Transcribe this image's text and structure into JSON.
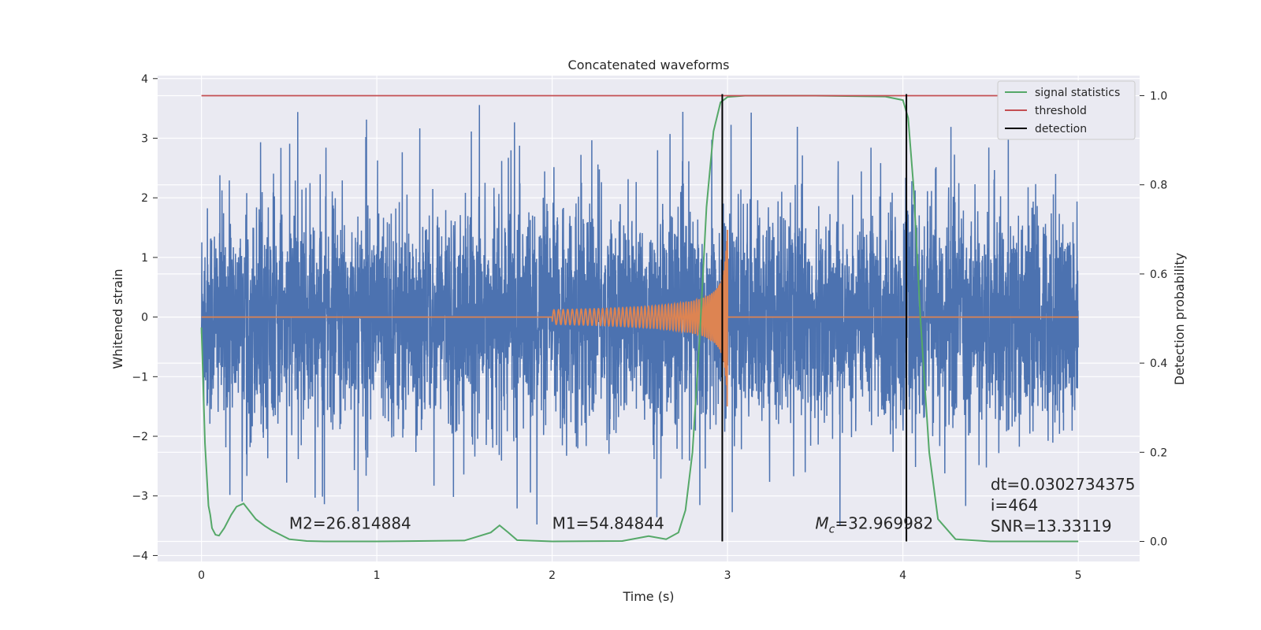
{
  "chart_data": {
    "type": "line",
    "title": "Concatenated waveforms",
    "xlabel": "Time (s)",
    "ylabel": "Whitened strain",
    "y2label": "Detection probability",
    "xlim": [
      -0.25,
      5.35
    ],
    "ylim": [
      -4.1,
      4.05
    ],
    "y2lim": [
      -0.045,
      1.045
    ],
    "x_ticks": [
      0,
      1,
      2,
      3,
      4,
      5
    ],
    "x_tick_labels": [
      "0",
      "1",
      "2",
      "3",
      "4",
      "5"
    ],
    "y_ticks": [
      -4,
      -3,
      -2,
      -1,
      0,
      1,
      2,
      3,
      4
    ],
    "y_tick_labels": [
      "−4",
      "−3",
      "−2",
      "−1",
      "0",
      "1",
      "2",
      "3",
      "4"
    ],
    "y2_ticks": [
      0.0,
      0.2,
      0.4,
      0.6,
      0.8,
      1.0
    ],
    "y2_tick_labels": [
      "0.0",
      "0.2",
      "0.4",
      "0.6",
      "0.8",
      "1.0"
    ],
    "grid": true,
    "legend_position": "top-right",
    "colors": {
      "strain": "#4c72b0",
      "template": "#dd8452",
      "signal_statistics": "#55a868",
      "threshold": "#c44e52",
      "detection": "#000000",
      "background": "#eaeaf2",
      "grid": "#ffffff"
    },
    "series": [
      {
        "name": "signal statistics",
        "axis": "right",
        "x": [
          0.0,
          0.02,
          0.04,
          0.05,
          0.06,
          0.08,
          0.1,
          0.13,
          0.17,
          0.2,
          0.24,
          0.27,
          0.31,
          0.36,
          0.4,
          0.5,
          0.6,
          0.7,
          1.0,
          1.5,
          1.65,
          1.7,
          1.75,
          1.8,
          2.0,
          2.4,
          2.55,
          2.65,
          2.72,
          2.76,
          2.8,
          2.84,
          2.88,
          2.92,
          2.96,
          3.0,
          3.1,
          3.5,
          3.9,
          4.0,
          4.03,
          4.06,
          4.1,
          4.15,
          4.2,
          4.3,
          4.5,
          5.0
        ],
        "y": [
          0.48,
          0.22,
          0.08,
          0.06,
          0.03,
          0.015,
          0.013,
          0.03,
          0.06,
          0.078,
          0.085,
          0.07,
          0.05,
          0.035,
          0.025,
          0.005,
          0.001,
          0.0,
          0.0,
          0.002,
          0.02,
          0.036,
          0.02,
          0.003,
          0.0,
          0.001,
          0.012,
          0.005,
          0.02,
          0.07,
          0.2,
          0.45,
          0.75,
          0.92,
          0.985,
          0.997,
          1.0,
          1.0,
          0.998,
          0.99,
          0.95,
          0.8,
          0.5,
          0.2,
          0.05,
          0.005,
          0.0,
          0.0
        ]
      },
      {
        "name": "threshold",
        "axis": "right",
        "x": [
          0,
          5
        ],
        "y": [
          1.0,
          1.0
        ]
      },
      {
        "name": "detection",
        "axis": "right",
        "x": [
          2.97,
          4.02
        ],
        "y_range": [
          0.0,
          1.0
        ]
      },
      {
        "axis": "left",
        "description_values": "whitened strain noise, 0 to 5 s, amplitude within ±1 with peaks to about ±3.7",
        "x_range": [
          0,
          5
        ],
        "y_range": [
          -3.7,
          3.7
        ]
      },
      {
        "axis": "left",
        "x_range": [
          2.0,
          3.0
        ],
        "y_range": [
          -1.5,
          1.45
        ]
      }
    ],
    "annotations": [
      {
        "text_pre": "M2=26.814884",
        "text_sub": "",
        "text_post": "",
        "x": 0.5,
        "y": -3.55
      },
      {
        "text_pre": "M1=54.84844",
        "text_sub": "",
        "text_post": "",
        "x": 2.0,
        "y": -3.55
      },
      {
        "text_pre": "M",
        "text_sub": "c",
        "text_post": "=32.969982",
        "x": 3.5,
        "y": -3.55
      },
      {
        "text_pre": "dt=0.0302734375",
        "text_sub": "",
        "text_post": "",
        "x": 4.5,
        "y": -2.9
      },
      {
        "text_pre": " i=464",
        "text_sub": "",
        "text_post": "",
        "x": 4.5,
        "y": -3.25
      },
      {
        "text_pre": "SNR=13.33119",
        "text_sub": "",
        "text_post": "",
        "x": 4.5,
        "y": -3.6
      }
    ],
    "legend": [
      "signal statistics",
      "threshold",
      "detection"
    ]
  }
}
